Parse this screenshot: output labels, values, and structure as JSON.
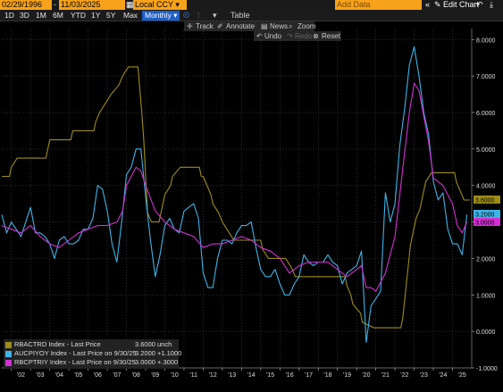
{
  "header": {
    "start_date": "02/29/1996",
    "end_date": "11/03/2025",
    "currency": "Local CCY",
    "add_data_placeholder": "Add Data",
    "edit_chart": "Edit Chart"
  },
  "tabs": [
    {
      "label": "1D"
    },
    {
      "label": "3D"
    },
    {
      "label": "1M"
    },
    {
      "label": "6M"
    },
    {
      "label": "YTD"
    },
    {
      "label": "1Y"
    },
    {
      "label": "5Y"
    },
    {
      "label": "Max"
    }
  ],
  "frequency": "Monthly",
  "table_label": "Table",
  "tools": {
    "track": "Track",
    "annotate": "Annotate",
    "news": "News",
    "zoom": "Zoom",
    "undo": "Undo",
    "redo": "Redo",
    "reset": "Reset"
  },
  "colors": {
    "rbactrd": "#9e8c18",
    "aucpiyoy": "#3fb4e8",
    "rbcptriy": "#d230d2"
  },
  "chart_data": {
    "type": "line",
    "x_ticks": [
      "'02",
      "'03",
      "'04",
      "'05",
      "'06",
      "'07",
      "'08",
      "'09",
      "'10",
      "'11",
      "'12",
      "'13",
      "'14",
      "'15",
      "'16",
      "'17",
      "'18",
      "'19",
      "'20",
      "'21",
      "'22",
      "'23",
      "'24",
      "'25"
    ],
    "x_range": [
      2001.5,
      2026.0
    ],
    "ylim": [
      -1.0,
      8.3
    ],
    "y_ticks": [
      "-1.0000",
      "0.0000",
      "1.0000",
      "2.0000",
      "3.0000",
      "4.0000",
      "5.0000",
      "6.0000",
      "7.0000",
      "8.0000"
    ],
    "series": [
      {
        "name": "RBACTRD Index - Last Price",
        "key": "rbactrd",
        "last_value": "3.6000",
        "change": "unch",
        "last_label": "3.6000",
        "points": [
          [
            2001.5,
            4.25
          ],
          [
            2001.9,
            4.25
          ],
          [
            2002.0,
            4.5
          ],
          [
            2002.3,
            4.75
          ],
          [
            2002.5,
            4.75
          ],
          [
            2003.8,
            4.75
          ],
          [
            2003.9,
            5.0
          ],
          [
            2004.0,
            5.25
          ],
          [
            2005.1,
            5.25
          ],
          [
            2005.2,
            5.5
          ],
          [
            2006.3,
            5.5
          ],
          [
            2006.4,
            5.75
          ],
          [
            2006.6,
            6.0
          ],
          [
            2006.9,
            6.25
          ],
          [
            2007.2,
            6.5
          ],
          [
            2007.6,
            6.75
          ],
          [
            2007.8,
            7.0
          ],
          [
            2008.1,
            7.25
          ],
          [
            2008.6,
            7.25
          ],
          [
            2008.8,
            6.0
          ],
          [
            2008.9,
            5.25
          ],
          [
            2009.0,
            4.25
          ],
          [
            2009.1,
            3.25
          ],
          [
            2009.3,
            3.0
          ],
          [
            2009.7,
            3.0
          ],
          [
            2009.8,
            3.25
          ],
          [
            2009.9,
            3.5
          ],
          [
            2010.0,
            3.75
          ],
          [
            2010.3,
            4.0
          ],
          [
            2010.4,
            4.25
          ],
          [
            2010.8,
            4.5
          ],
          [
            2011.8,
            4.5
          ],
          [
            2011.9,
            4.25
          ],
          [
            2012.0,
            4.25
          ],
          [
            2012.4,
            3.75
          ],
          [
            2012.5,
            3.5
          ],
          [
            2012.8,
            3.25
          ],
          [
            2013.0,
            3.0
          ],
          [
            2013.3,
            2.75
          ],
          [
            2013.6,
            2.5
          ],
          [
            2015.0,
            2.5
          ],
          [
            2015.1,
            2.25
          ],
          [
            2015.4,
            2.0
          ],
          [
            2016.3,
            2.0
          ],
          [
            2016.6,
            1.75
          ],
          [
            2016.8,
            1.5
          ],
          [
            2019.4,
            1.5
          ],
          [
            2019.5,
            1.25
          ],
          [
            2019.7,
            1.0
          ],
          [
            2019.8,
            0.75
          ],
          [
            2020.2,
            0.5
          ],
          [
            2020.3,
            0.25
          ],
          [
            2020.9,
            0.1
          ],
          [
            2022.3,
            0.1
          ],
          [
            2022.4,
            0.35
          ],
          [
            2022.5,
            0.85
          ],
          [
            2022.6,
            1.35
          ],
          [
            2022.7,
            1.85
          ],
          [
            2022.8,
            2.35
          ],
          [
            2022.9,
            2.6
          ],
          [
            2023.1,
            3.1
          ],
          [
            2023.3,
            3.35
          ],
          [
            2023.5,
            3.85
          ],
          [
            2023.6,
            4.1
          ],
          [
            2023.9,
            4.35
          ],
          [
            2025.1,
            4.35
          ],
          [
            2025.2,
            4.1
          ],
          [
            2025.4,
            3.85
          ],
          [
            2025.6,
            3.6
          ],
          [
            2025.9,
            3.6
          ]
        ]
      },
      {
        "name": "AUCPIYOY Index - Last Price on 9/30/25",
        "key": "aucpiyoy",
        "last_value": "3.2000",
        "change": "+1.1000",
        "last_label": "3.2000",
        "points": [
          [
            2001.5,
            3.2
          ],
          [
            2001.75,
            2.7
          ],
          [
            2002.0,
            3.0
          ],
          [
            2002.25,
            2.8
          ],
          [
            2002.5,
            2.6
          ],
          [
            2002.75,
            3.0
          ],
          [
            2003.0,
            3.4
          ],
          [
            2003.25,
            2.7
          ],
          [
            2003.5,
            2.7
          ],
          [
            2003.75,
            2.6
          ],
          [
            2004.0,
            2.4
          ],
          [
            2004.25,
            2.0
          ],
          [
            2004.5,
            2.5
          ],
          [
            2004.75,
            2.6
          ],
          [
            2005.0,
            2.4
          ],
          [
            2005.25,
            2.4
          ],
          [
            2005.5,
            2.5
          ],
          [
            2005.75,
            2.8
          ],
          [
            2006.0,
            2.8
          ],
          [
            2006.25,
            3.1
          ],
          [
            2006.5,
            4.0
          ],
          [
            2006.75,
            3.9
          ],
          [
            2007.0,
            3.3
          ],
          [
            2007.25,
            2.4
          ],
          [
            2007.5,
            1.9
          ],
          [
            2007.75,
            3.0
          ],
          [
            2008.0,
            4.3
          ],
          [
            2008.25,
            4.5
          ],
          [
            2008.5,
            5.0
          ],
          [
            2008.75,
            5.0
          ],
          [
            2009.0,
            3.7
          ],
          [
            2009.25,
            2.5
          ],
          [
            2009.5,
            1.5
          ],
          [
            2009.75,
            2.1
          ],
          [
            2010.0,
            2.9
          ],
          [
            2010.25,
            3.1
          ],
          [
            2010.5,
            2.8
          ],
          [
            2010.75,
            2.7
          ],
          [
            2011.0,
            3.3
          ],
          [
            2011.25,
            3.4
          ],
          [
            2011.5,
            3.5
          ],
          [
            2011.75,
            3.1
          ],
          [
            2012.0,
            1.6
          ],
          [
            2012.25,
            1.2
          ],
          [
            2012.5,
            1.2
          ],
          [
            2012.75,
            2.0
          ],
          [
            2013.0,
            2.5
          ],
          [
            2013.25,
            2.5
          ],
          [
            2013.5,
            2.4
          ],
          [
            2013.75,
            2.7
          ],
          [
            2014.0,
            2.9
          ],
          [
            2014.25,
            2.9
          ],
          [
            2014.5,
            3.0
          ],
          [
            2014.75,
            2.3
          ],
          [
            2015.0,
            1.7
          ],
          [
            2015.25,
            1.5
          ],
          [
            2015.5,
            1.5
          ],
          [
            2015.75,
            1.7
          ],
          [
            2016.0,
            1.3
          ],
          [
            2016.25,
            1.0
          ],
          [
            2016.5,
            1.0
          ],
          [
            2016.75,
            1.3
          ],
          [
            2017.0,
            1.5
          ],
          [
            2017.25,
            2.1
          ],
          [
            2017.5,
            1.9
          ],
          [
            2017.75,
            1.8
          ],
          [
            2018.0,
            1.9
          ],
          [
            2018.25,
            1.9
          ],
          [
            2018.5,
            2.1
          ],
          [
            2018.75,
            1.9
          ],
          [
            2019.0,
            1.8
          ],
          [
            2019.25,
            1.3
          ],
          [
            2019.5,
            1.6
          ],
          [
            2019.75,
            1.7
          ],
          [
            2020.0,
            1.8
          ],
          [
            2020.25,
            2.2
          ],
          [
            2020.5,
            -0.3
          ],
          [
            2020.75,
            0.7
          ],
          [
            2021.0,
            0.9
          ],
          [
            2021.25,
            1.1
          ],
          [
            2021.5,
            3.8
          ],
          [
            2021.75,
            3.0
          ],
          [
            2022.0,
            3.5
          ],
          [
            2022.25,
            5.1
          ],
          [
            2022.5,
            6.1
          ],
          [
            2022.75,
            7.3
          ],
          [
            2023.0,
            7.8
          ],
          [
            2023.25,
            7.0
          ],
          [
            2023.5,
            6.0
          ],
          [
            2023.75,
            5.4
          ],
          [
            2024.0,
            4.1
          ],
          [
            2024.25,
            3.6
          ],
          [
            2024.5,
            3.8
          ],
          [
            2024.75,
            2.8
          ],
          [
            2025.0,
            2.4
          ],
          [
            2025.25,
            2.4
          ],
          [
            2025.5,
            2.1
          ],
          [
            2025.75,
            3.2
          ]
        ]
      },
      {
        "name": "RBCPTRIY Index - Last Price on 9/30/25",
        "key": "rbcptriy",
        "last_value": "3.0000",
        "change": "+.3000",
        "last_label": "3.0000",
        "points": [
          [
            2001.5,
            2.9
          ],
          [
            2002.0,
            2.8
          ],
          [
            2002.5,
            2.7
          ],
          [
            2003.0,
            2.9
          ],
          [
            2003.5,
            2.6
          ],
          [
            2004.0,
            2.4
          ],
          [
            2004.5,
            2.3
          ],
          [
            2005.0,
            2.5
          ],
          [
            2005.5,
            2.7
          ],
          [
            2006.0,
            2.8
          ],
          [
            2006.5,
            2.9
          ],
          [
            2007.0,
            2.9
          ],
          [
            2007.5,
            3.0
          ],
          [
            2007.8,
            3.3
          ],
          [
            2008.0,
            4.0
          ],
          [
            2008.5,
            4.5
          ],
          [
            2008.75,
            4.4
          ],
          [
            2009.0,
            4.0
          ],
          [
            2009.5,
            3.3
          ],
          [
            2010.0,
            3.0
          ],
          [
            2010.5,
            2.8
          ],
          [
            2011.0,
            2.7
          ],
          [
            2011.5,
            2.6
          ],
          [
            2012.0,
            2.3
          ],
          [
            2012.5,
            2.4
          ],
          [
            2013.0,
            2.4
          ],
          [
            2013.5,
            2.5
          ],
          [
            2014.0,
            2.6
          ],
          [
            2014.5,
            2.5
          ],
          [
            2015.0,
            2.3
          ],
          [
            2015.5,
            2.2
          ],
          [
            2016.0,
            2.0
          ],
          [
            2016.5,
            1.6
          ],
          [
            2017.0,
            1.8
          ],
          [
            2017.5,
            1.9
          ],
          [
            2018.0,
            1.9
          ],
          [
            2018.5,
            1.9
          ],
          [
            2019.0,
            1.7
          ],
          [
            2019.5,
            1.5
          ],
          [
            2020.0,
            1.7
          ],
          [
            2020.25,
            1.8
          ],
          [
            2020.5,
            1.2
          ],
          [
            2020.75,
            1.2
          ],
          [
            2021.0,
            1.1
          ],
          [
            2021.5,
            1.6
          ],
          [
            2022.0,
            2.6
          ],
          [
            2022.5,
            4.9
          ],
          [
            2022.75,
            6.0
          ],
          [
            2023.0,
            6.8
          ],
          [
            2023.25,
            6.6
          ],
          [
            2023.5,
            5.9
          ],
          [
            2023.75,
            5.2
          ],
          [
            2024.0,
            4.2
          ],
          [
            2024.5,
            4.0
          ],
          [
            2025.0,
            3.5
          ],
          [
            2025.25,
            2.9
          ],
          [
            2025.5,
            2.7
          ],
          [
            2025.75,
            3.0
          ]
        ]
      }
    ]
  }
}
